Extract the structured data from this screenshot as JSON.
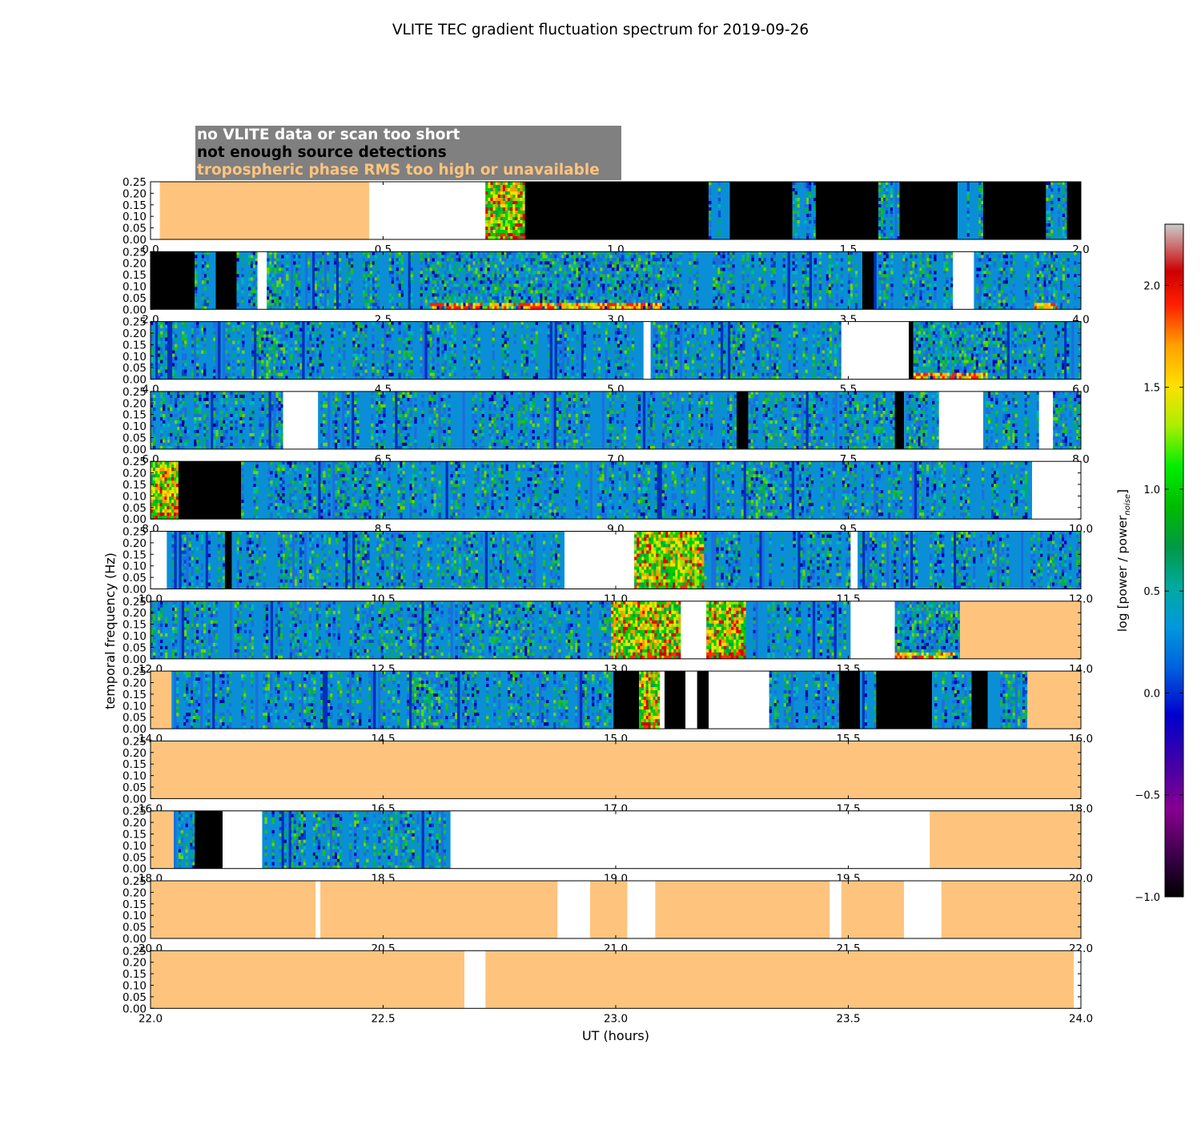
{
  "colors": {
    "nodata": "#ffffff",
    "fewsources": "#000000",
    "tropo": "#fec47d",
    "legendBg": "#808080",
    "baseline": "#0a8fd6"
  },
  "legend": {
    "nodata": "no VLITE data or scan too short",
    "fewsources": "not enough source detections",
    "tropo": "tropospheric phase RMS too high or unavailable"
  },
  "chart_data": {
    "type": "heatmap",
    "title": "VLITE TEC gradient fluctuation spectrum for 2019-09-26",
    "xlabel": "UT (hours)",
    "ylabel": "temporal frequency (Hz)",
    "ylim": [
      0,
      0.25
    ],
    "yticks": [
      "0.00",
      "0.05",
      "0.10",
      "0.15",
      "0.20",
      "0.25"
    ],
    "colorbar": {
      "label": "log [power / power_noise]",
      "label_main": "log [power / power",
      "label_sub": "noise",
      "label_end": "]",
      "range": [
        -1.0,
        2.3
      ],
      "ticks": [
        "−1.0",
        "−0.5",
        "0.0",
        "0.5",
        "1.0",
        "1.5",
        "2.0"
      ],
      "tick_values": [
        -1.0,
        -0.5,
        0.0,
        0.5,
        1.0,
        1.5,
        2.0
      ]
    },
    "panels": [
      {
        "xlim": [
          0,
          2
        ],
        "xticks": [
          "0.0",
          "0.5",
          "1.0",
          "1.5",
          "2.0"
        ],
        "segments": [
          [
            "w",
            0,
            0.02
          ],
          [
            "t",
            0.02,
            0.47
          ],
          [
            "w",
            0.47,
            0.72
          ],
          [
            "s",
            0.72,
            0.805,
            "active"
          ],
          [
            "b",
            0.805,
            1.2
          ],
          [
            "s",
            1.2,
            1.245
          ],
          [
            "b",
            1.245,
            1.38
          ],
          [
            "s",
            1.38,
            1.43
          ],
          [
            "b",
            1.43,
            1.565
          ],
          [
            "s",
            1.565,
            1.61
          ],
          [
            "b",
            1.61,
            1.735
          ],
          [
            "s",
            1.735,
            1.79
          ],
          [
            "b",
            1.79,
            1.925
          ],
          [
            "s",
            1.925,
            1.97
          ],
          [
            "b",
            1.97,
            2.0
          ]
        ]
      },
      {
        "xlim": [
          2,
          4
        ],
        "xticks": [
          "2.0",
          "2.5",
          "3.0",
          "3.5",
          "4.0"
        ],
        "segments": [
          [
            "b",
            2.0,
            2.095
          ],
          [
            "s",
            2.095,
            2.14
          ],
          [
            "b",
            2.14,
            2.185
          ],
          [
            "s",
            2.185,
            2.23
          ],
          [
            "w",
            2.23,
            2.25
          ],
          [
            "s",
            2.25,
            2.6
          ],
          [
            "s",
            2.6,
            3.1,
            "bottom"
          ],
          [
            "s",
            3.1,
            3.53
          ],
          [
            "b",
            3.53,
            3.555
          ],
          [
            "s",
            3.555,
            3.725
          ],
          [
            "w",
            3.725,
            3.77
          ],
          [
            "s",
            3.77,
            3.9
          ],
          [
            "s",
            3.9,
            3.95,
            "bottom"
          ],
          [
            "s",
            3.95,
            4.0
          ]
        ]
      },
      {
        "xlim": [
          4,
          6
        ],
        "xticks": [
          "4.0",
          "4.5",
          "5.0",
          "5.5",
          "6.0"
        ],
        "segments": [
          [
            "s",
            4.0,
            5.06
          ],
          [
            "w",
            5.06,
            5.075
          ],
          [
            "s",
            5.075,
            5.485
          ],
          [
            "w",
            5.485,
            5.63
          ],
          [
            "b",
            5.63,
            5.64
          ],
          [
            "s",
            5.64,
            5.8,
            "bottom"
          ],
          [
            "s",
            5.8,
            6.0
          ]
        ]
      },
      {
        "xlim": [
          6,
          8
        ],
        "xticks": [
          "6.0",
          "6.5",
          "7.0",
          "7.5",
          "8.0"
        ],
        "segments": [
          [
            "s",
            6.0,
            6.285
          ],
          [
            "w",
            6.285,
            6.36
          ],
          [
            "s",
            6.36,
            7.26
          ],
          [
            "b",
            7.26,
            7.285
          ],
          [
            "s",
            7.285,
            7.6
          ],
          [
            "b",
            7.6,
            7.62
          ],
          [
            "s",
            7.62,
            7.695
          ],
          [
            "w",
            7.695,
            7.79
          ],
          [
            "s",
            7.79,
            7.91
          ],
          [
            "w",
            7.91,
            7.94
          ],
          [
            "s",
            7.94,
            8.0
          ]
        ]
      },
      {
        "xlim": [
          8,
          10
        ],
        "xticks": [
          "8.0",
          "8.5",
          "9.0",
          "9.5",
          "10.0"
        ],
        "segments": [
          [
            "s",
            8.0,
            8.06,
            "active"
          ],
          [
            "b",
            8.06,
            8.195
          ],
          [
            "s",
            8.195,
            9.895
          ],
          [
            "w",
            9.895,
            10.0
          ]
        ]
      },
      {
        "xlim": [
          10,
          12
        ],
        "xticks": [
          "10.0",
          "10.5",
          "11.0",
          "11.5",
          "12.0"
        ],
        "segments": [
          [
            "w",
            10.0,
            10.035
          ],
          [
            "s",
            10.035,
            10.16
          ],
          [
            "b",
            10.16,
            10.175
          ],
          [
            "s",
            10.175,
            10.89
          ],
          [
            "w",
            10.89,
            11.04
          ],
          [
            "s",
            11.04,
            11.19,
            "active"
          ],
          [
            "s",
            11.19,
            11.505
          ],
          [
            "w",
            11.505,
            11.52
          ],
          [
            "s",
            11.52,
            12.0
          ]
        ]
      },
      {
        "xlim": [
          12,
          14
        ],
        "xticks": [
          "12.0",
          "12.5",
          "13.0",
          "13.5",
          "14.0"
        ],
        "segments": [
          [
            "s",
            12.0,
            12.99
          ],
          [
            "s",
            12.99,
            13.14,
            "active"
          ],
          [
            "w",
            13.14,
            13.195
          ],
          [
            "s",
            13.195,
            13.28,
            "active"
          ],
          [
            "s",
            13.28,
            13.505
          ],
          [
            "w",
            13.505,
            13.6
          ],
          [
            "s",
            13.6,
            13.74,
            "bottom"
          ],
          [
            "t",
            13.74,
            14.0
          ]
        ]
      },
      {
        "xlim": [
          14,
          16
        ],
        "xticks": [
          "14.0",
          "14.5",
          "15.0",
          "15.5",
          "16.0"
        ],
        "segments": [
          [
            "t",
            14.0,
            14.045
          ],
          [
            "s",
            14.045,
            14.995
          ],
          [
            "b",
            14.995,
            15.05
          ],
          [
            "s",
            15.05,
            15.095,
            "active"
          ],
          [
            "w",
            15.095,
            15.105
          ],
          [
            "b",
            15.105,
            15.15
          ],
          [
            "w",
            15.15,
            15.175
          ],
          [
            "b",
            15.175,
            15.2
          ],
          [
            "w",
            15.2,
            15.22
          ],
          [
            "w",
            15.22,
            15.33
          ],
          [
            "s",
            15.33,
            15.48
          ],
          [
            "b",
            15.48,
            15.525
          ],
          [
            "s",
            15.525,
            15.56
          ],
          [
            "b",
            15.56,
            15.68
          ],
          [
            "s",
            15.68,
            15.765
          ],
          [
            "b",
            15.765,
            15.8
          ],
          [
            "s",
            15.8,
            15.885
          ],
          [
            "t",
            15.885,
            16.0
          ]
        ]
      },
      {
        "xlim": [
          16,
          18
        ],
        "xticks": [
          "16.0",
          "16.5",
          "17.0",
          "17.5",
          "18.0"
        ],
        "segments": [
          [
            "t",
            16.0,
            18.0
          ]
        ]
      },
      {
        "xlim": [
          18,
          20
        ],
        "xticks": [
          "18.0",
          "18.5",
          "19.0",
          "19.5",
          "20.0"
        ],
        "segments": [
          [
            "t",
            18.0,
            18.05
          ],
          [
            "s",
            18.05,
            18.095
          ],
          [
            "b",
            18.095,
            18.155
          ],
          [
            "w",
            18.155,
            18.24
          ],
          [
            "s",
            18.24,
            18.645
          ],
          [
            "w",
            18.645,
            19.675
          ],
          [
            "t",
            19.675,
            20.0
          ]
        ]
      },
      {
        "xlim": [
          20,
          22
        ],
        "xticks": [
          "20.0",
          "20.5",
          "21.0",
          "21.5",
          "22.0"
        ],
        "segments": [
          [
            "t",
            20.0,
            20.355
          ],
          [
            "w",
            20.355,
            20.365
          ],
          [
            "t",
            20.365,
            20.875
          ],
          [
            "w",
            20.875,
            20.945
          ],
          [
            "t",
            20.945,
            21.025
          ],
          [
            "w",
            21.025,
            21.085
          ],
          [
            "t",
            21.085,
            21.46
          ],
          [
            "w",
            21.46,
            21.485
          ],
          [
            "t",
            21.485,
            21.62
          ],
          [
            "w",
            21.62,
            21.7
          ],
          [
            "t",
            21.7,
            22.0
          ]
        ]
      },
      {
        "xlim": [
          22,
          24
        ],
        "xticks": [
          "22.0",
          "22.5",
          "23.0",
          "23.5",
          "24.0"
        ],
        "segments": [
          [
            "t",
            22.0,
            22.675
          ],
          [
            "w",
            22.675,
            22.72
          ],
          [
            "t",
            22.72,
            23.985
          ],
          [
            "w",
            23.985,
            24.0
          ]
        ]
      }
    ]
  }
}
